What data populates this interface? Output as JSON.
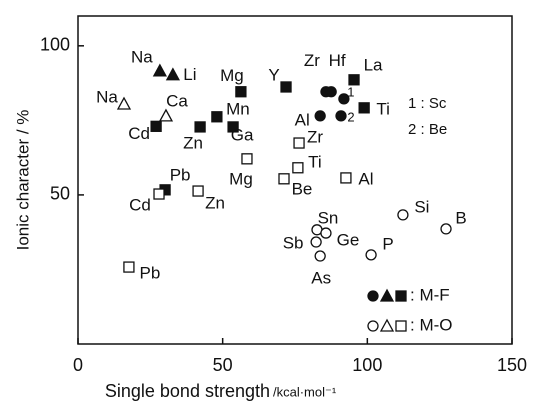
{
  "chart_data": {
    "type": "scatter",
    "y_label": "Ionic character / %",
    "x_label": "Single bond strength",
    "x_unit": "/kcal·mol⁻¹",
    "xlim": [
      0,
      150
    ],
    "xticks": [
      0,
      50,
      100,
      150
    ],
    "ylim": [
      0,
      110
    ],
    "yticks": [
      50,
      100
    ],
    "color": "#111111",
    "points": [
      {
        "label": "Na",
        "x": 28.3,
        "y": 91.6,
        "marker": "triangle",
        "filled": true
      },
      {
        "label": "Li",
        "x": 32.8,
        "y": 90.3,
        "marker": "triangle",
        "filled": true
      },
      {
        "label": "Na",
        "x": 15.9,
        "y": 80.5,
        "marker": "triangle",
        "filled": false
      },
      {
        "label": "Ca",
        "x": 30.4,
        "y": 76.5,
        "marker": "triangle",
        "filled": false
      },
      {
        "label": "Cd",
        "x": 27,
        "y": 73,
        "marker": "square",
        "filled": true
      },
      {
        "label": "Zn",
        "x": 42.2,
        "y": 72.8,
        "marker": "square",
        "filled": true
      },
      {
        "label": "Mn",
        "x": 48,
        "y": 76.2,
        "marker": "square",
        "filled": true
      },
      {
        "label": "Mg",
        "x": 56.3,
        "y": 84.6,
        "marker": "square",
        "filled": true
      },
      {
        "label": "Y",
        "x": 71.9,
        "y": 86.2,
        "marker": "square",
        "filled": true
      },
      {
        "label": "Ga",
        "x": 53.6,
        "y": 72.8,
        "marker": "square",
        "filled": true
      },
      {
        "label": "La",
        "x": 95.4,
        "y": 88.6,
        "marker": "square",
        "filled": true
      },
      {
        "label": "Ti",
        "x": 98.9,
        "y": 79.2,
        "marker": "square",
        "filled": true
      },
      {
        "label": "Pb",
        "x": 30.1,
        "y": 51.7,
        "marker": "square",
        "filled": true
      },
      {
        "label": "Zr",
        "x": 85.7,
        "y": 84.6,
        "marker": "circle",
        "filled": true
      },
      {
        "label": "Hf",
        "x": 87.5,
        "y": 84.6,
        "marker": "circle",
        "filled": true
      },
      {
        "label": "1",
        "x": 91.9,
        "y": 82.2,
        "marker": "circle",
        "filled": true
      },
      {
        "label": "Al",
        "x": 83.7,
        "y": 76.5,
        "marker": "circle",
        "filled": true
      },
      {
        "label": "2",
        "x": 90.9,
        "y": 76.5,
        "marker": "circle",
        "filled": true
      },
      {
        "label": "Pb",
        "x": 17.6,
        "y": 25.8,
        "marker": "square",
        "filled": false
      },
      {
        "label": "Cd",
        "x": 28,
        "y": 50.3,
        "marker": "square",
        "filled": false
      },
      {
        "label": "Zn",
        "x": 41.5,
        "y": 51.3,
        "marker": "square",
        "filled": false
      },
      {
        "label": "Mg",
        "x": 58.4,
        "y": 62.1,
        "marker": "square",
        "filled": false
      },
      {
        "label": "Zr",
        "x": 76.4,
        "y": 67.4,
        "marker": "square",
        "filled": false
      },
      {
        "label": "Ti",
        "x": 76,
        "y": 59.1,
        "marker": "square",
        "filled": false
      },
      {
        "label": "Be",
        "x": 71.2,
        "y": 55.4,
        "marker": "square",
        "filled": false
      },
      {
        "label": "Al",
        "x": 92.6,
        "y": 55.7,
        "marker": "square",
        "filled": false
      },
      {
        "label": "Si",
        "x": 112.3,
        "y": 43.3,
        "marker": "circle",
        "filled": false
      },
      {
        "label": "B",
        "x": 127.2,
        "y": 38.6,
        "marker": "circle",
        "filled": false
      },
      {
        "label": "Sn",
        "x": 82.6,
        "y": 38.3,
        "marker": "circle",
        "filled": false
      },
      {
        "label": "Ge",
        "x": 85.7,
        "y": 37.2,
        "marker": "circle",
        "filled": false
      },
      {
        "label": "Sb",
        "x": 82.3,
        "y": 34.2,
        "marker": "circle",
        "filled": false
      },
      {
        "label": "As",
        "x": 83.7,
        "y": 29.5,
        "marker": "circle",
        "filled": false
      },
      {
        "label": "P",
        "x": 101.3,
        "y": 29.9,
        "marker": "circle",
        "filled": false
      }
    ],
    "annotations": [
      "1 : Sc",
      "2 : Be"
    ],
    "legend": [
      {
        "label": ": M-F",
        "filled": true
      },
      {
        "label": ": M-O",
        "filled": false
      }
    ]
  }
}
